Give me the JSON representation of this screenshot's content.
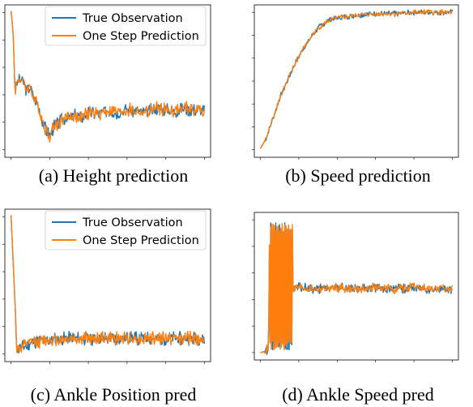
{
  "chart_data": [
    {
      "id": "a",
      "type": "line",
      "caption": "(a) Height prediction",
      "legend": {
        "position": "upper-right",
        "entries": [
          "True Observation",
          "One Step Prediction"
        ]
      },
      "grid": false,
      "colors": {
        "true": "#1f77b4",
        "pred": "#ff7f0e"
      },
      "xlim": [
        0,
        1
      ],
      "ylim": [
        0,
        1
      ],
      "x_ticks": 6,
      "y_ticks": 6,
      "series": [
        {
          "name": "True Observation",
          "knots": [
            [
              0.0,
              0.99
            ],
            [
              0.005,
              0.93
            ],
            [
              0.012,
              0.8
            ],
            [
              0.02,
              0.44
            ],
            [
              0.04,
              0.52
            ],
            [
              0.06,
              0.5
            ],
            [
              0.08,
              0.44
            ],
            [
              0.1,
              0.46
            ],
            [
              0.12,
              0.37
            ],
            [
              0.14,
              0.33
            ],
            [
              0.16,
              0.24
            ],
            [
              0.18,
              0.16
            ],
            [
              0.2,
              0.12
            ],
            [
              0.22,
              0.18
            ],
            [
              0.24,
              0.2
            ],
            [
              0.27,
              0.24
            ],
            [
              0.3,
              0.25
            ],
            [
              0.33,
              0.26
            ],
            [
              0.37,
              0.25
            ],
            [
              0.4,
              0.28
            ],
            [
              0.45,
              0.27
            ],
            [
              0.5,
              0.3
            ],
            [
              0.55,
              0.28
            ],
            [
              0.6,
              0.3
            ],
            [
              0.65,
              0.29
            ],
            [
              0.7,
              0.28
            ],
            [
              0.75,
              0.31
            ],
            [
              0.8,
              0.3
            ],
            [
              0.85,
              0.29
            ],
            [
              0.9,
              0.31
            ],
            [
              0.95,
              0.3
            ],
            [
              1.0,
              0.29
            ]
          ],
          "amplitude": 0.05,
          "seed": 3
        },
        {
          "name": "One Step Prediction",
          "knots": [
            [
              0.0,
              0.99
            ],
            [
              0.005,
              0.93
            ],
            [
              0.012,
              0.8
            ],
            [
              0.02,
              0.44
            ],
            [
              0.04,
              0.52
            ],
            [
              0.06,
              0.5
            ],
            [
              0.08,
              0.44
            ],
            [
              0.1,
              0.46
            ],
            [
              0.12,
              0.37
            ],
            [
              0.14,
              0.33
            ],
            [
              0.16,
              0.24
            ],
            [
              0.18,
              0.16
            ],
            [
              0.2,
              0.12
            ],
            [
              0.22,
              0.18
            ],
            [
              0.24,
              0.2
            ],
            [
              0.27,
              0.24
            ],
            [
              0.3,
              0.25
            ],
            [
              0.33,
              0.26
            ],
            [
              0.37,
              0.25
            ],
            [
              0.4,
              0.28
            ],
            [
              0.45,
              0.27
            ],
            [
              0.5,
              0.3
            ],
            [
              0.55,
              0.28
            ],
            [
              0.6,
              0.3
            ],
            [
              0.65,
              0.29
            ],
            [
              0.7,
              0.28
            ],
            [
              0.75,
              0.31
            ],
            [
              0.8,
              0.3
            ],
            [
              0.85,
              0.29
            ],
            [
              0.9,
              0.31
            ],
            [
              0.95,
              0.3
            ],
            [
              1.0,
              0.29
            ]
          ],
          "amplitude": 0.05,
          "seed": 4
        }
      ]
    },
    {
      "id": "b",
      "type": "line",
      "caption": "(b) Speed prediction",
      "grid": false,
      "colors": {
        "true": "#1f77b4",
        "pred": "#ff7f0e"
      },
      "xlim": [
        0,
        1
      ],
      "ylim": [
        0,
        1
      ],
      "x_ticks": 6,
      "y_ticks": 7,
      "series": [
        {
          "name": "True Observation",
          "knots": [
            [
              0.0,
              0.03
            ],
            [
              0.03,
              0.1
            ],
            [
              0.06,
              0.22
            ],
            [
              0.1,
              0.38
            ],
            [
              0.14,
              0.5
            ],
            [
              0.18,
              0.62
            ],
            [
              0.22,
              0.72
            ],
            [
              0.26,
              0.8
            ],
            [
              0.3,
              0.87
            ],
            [
              0.35,
              0.92
            ],
            [
              0.4,
              0.94
            ],
            [
              0.5,
              0.96
            ],
            [
              0.6,
              0.97
            ],
            [
              0.7,
              0.97
            ],
            [
              0.8,
              0.98
            ],
            [
              0.9,
              0.98
            ],
            [
              1.0,
              0.98
            ]
          ],
          "amplitude": 0.02,
          "seed": 7
        },
        {
          "name": "One Step Prediction",
          "knots": [
            [
              0.0,
              0.03
            ],
            [
              0.03,
              0.1
            ],
            [
              0.06,
              0.22
            ],
            [
              0.1,
              0.38
            ],
            [
              0.14,
              0.5
            ],
            [
              0.18,
              0.62
            ],
            [
              0.22,
              0.72
            ],
            [
              0.26,
              0.8
            ],
            [
              0.3,
              0.87
            ],
            [
              0.35,
              0.92
            ],
            [
              0.4,
              0.94
            ],
            [
              0.5,
              0.96
            ],
            [
              0.6,
              0.97
            ],
            [
              0.7,
              0.97
            ],
            [
              0.8,
              0.98
            ],
            [
              0.9,
              0.98
            ],
            [
              1.0,
              0.98
            ]
          ],
          "amplitude": 0.02,
          "seed": 8
        }
      ]
    },
    {
      "id": "c",
      "type": "line",
      "caption": "(c) Ankle Position pred",
      "legend": {
        "position": "upper-right",
        "entries": [
          "True Observation",
          "One Step Prediction"
        ]
      },
      "grid": false,
      "colors": {
        "true": "#1f77b4",
        "pred": "#ff7f0e"
      },
      "xlim": [
        0,
        1
      ],
      "ylim": [
        0,
        1
      ],
      "x_ticks": 6,
      "y_ticks": 6,
      "series": [
        {
          "name": "True Observation",
          "knots": [
            [
              0.0,
              0.99
            ],
            [
              0.015,
              0.55
            ],
            [
              0.03,
              0.06
            ],
            [
              0.05,
              0.06
            ],
            [
              0.1,
              0.1
            ],
            [
              0.2,
              0.12
            ],
            [
              0.3,
              0.13
            ],
            [
              0.4,
              0.13
            ],
            [
              0.5,
              0.13
            ],
            [
              0.6,
              0.13
            ],
            [
              0.7,
              0.13
            ],
            [
              0.8,
              0.13
            ],
            [
              0.9,
              0.13
            ],
            [
              1.0,
              0.13
            ]
          ],
          "amplitude": 0.05,
          "seed": 11
        },
        {
          "name": "One Step Prediction",
          "knots": [
            [
              0.0,
              0.99
            ],
            [
              0.015,
              0.55
            ],
            [
              0.03,
              0.06
            ],
            [
              0.05,
              0.06
            ],
            [
              0.1,
              0.1
            ],
            [
              0.2,
              0.12
            ],
            [
              0.3,
              0.13
            ],
            [
              0.4,
              0.13
            ],
            [
              0.5,
              0.13
            ],
            [
              0.6,
              0.13
            ],
            [
              0.7,
              0.13
            ],
            [
              0.8,
              0.13
            ],
            [
              0.9,
              0.13
            ],
            [
              1.0,
              0.13
            ]
          ],
          "amplitude": 0.05,
          "seed": 12
        }
      ]
    },
    {
      "id": "d",
      "type": "line",
      "caption": "(d) Ankle Speed pred",
      "grid": false,
      "colors": {
        "true": "#1f77b4",
        "pred": "#ff7f0e"
      },
      "xlim": [
        0,
        1
      ],
      "ylim": [
        0,
        1
      ],
      "x_ticks": 6,
      "y_ticks": 6,
      "series": [
        {
          "name": "True Observation",
          "knots": [
            [
              0.0,
              0.02
            ],
            [
              0.02,
              0.03
            ],
            [
              0.04,
              0.05
            ],
            [
              0.05,
              0.5
            ],
            [
              0.08,
              0.5
            ],
            [
              0.12,
              0.5
            ],
            [
              0.16,
              0.5
            ],
            [
              0.17,
              0.49
            ],
            [
              0.2,
              0.49
            ],
            [
              0.3,
              0.48
            ],
            [
              0.4,
              0.49
            ],
            [
              0.5,
              0.48
            ],
            [
              0.6,
              0.49
            ],
            [
              0.7,
              0.48
            ],
            [
              0.8,
              0.49
            ],
            [
              0.9,
              0.48
            ],
            [
              1.0,
              0.48
            ]
          ],
          "osc_end": 0.17,
          "osc_amp": 0.46,
          "amplitude": 0.035,
          "seed": 15
        },
        {
          "name": "One Step Prediction",
          "knots": [
            [
              0.0,
              0.02
            ],
            [
              0.02,
              0.03
            ],
            [
              0.04,
              0.05
            ],
            [
              0.05,
              0.5
            ],
            [
              0.08,
              0.5
            ],
            [
              0.12,
              0.5
            ],
            [
              0.16,
              0.5
            ],
            [
              0.17,
              0.49
            ],
            [
              0.2,
              0.49
            ],
            [
              0.3,
              0.48
            ],
            [
              0.4,
              0.49
            ],
            [
              0.5,
              0.48
            ],
            [
              0.6,
              0.49
            ],
            [
              0.7,
              0.48
            ],
            [
              0.8,
              0.49
            ],
            [
              0.9,
              0.48
            ],
            [
              1.0,
              0.48
            ]
          ],
          "osc_end": 0.17,
          "osc_amp": 0.46,
          "amplitude": 0.035,
          "seed": 16
        }
      ]
    }
  ]
}
